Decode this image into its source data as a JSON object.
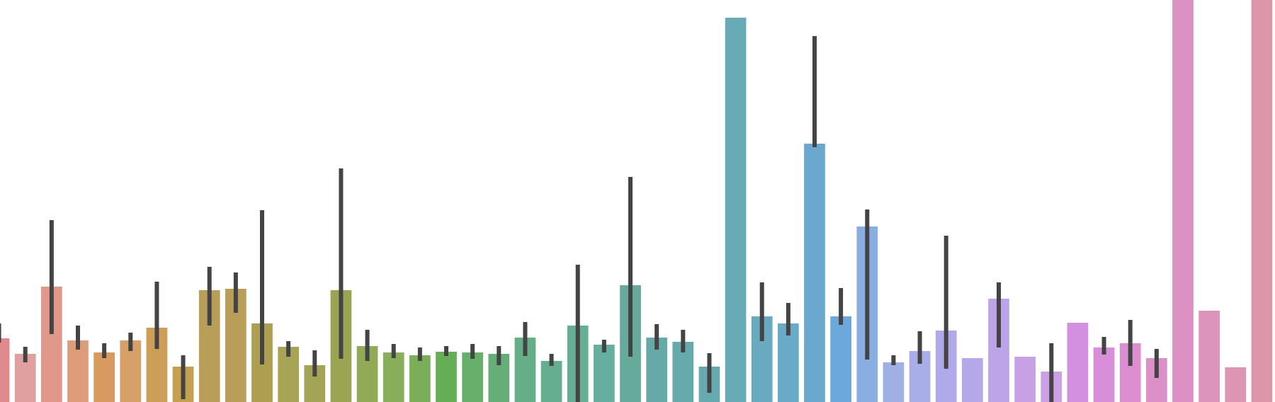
{
  "chart_data": {
    "type": "bar",
    "title": "",
    "xlabel": "",
    "ylabel": "",
    "ylim": [
      0,
      568
    ],
    "grid": false,
    "legend": "none",
    "bars": [
      {
        "v": 90,
        "lo": 84,
        "hi": 111,
        "color": "#e08a8e"
      },
      {
        "v": 68,
        "lo": 56,
        "hi": 78,
        "color": "#e0a09e"
      },
      {
        "v": 163,
        "lo": 96,
        "hi": 257,
        "color": "#e0988a"
      },
      {
        "v": 87,
        "lo": 74,
        "hi": 108,
        "color": "#de9c78"
      },
      {
        "v": 70,
        "lo": 62,
        "hi": 83,
        "color": "#d99a62"
      },
      {
        "v": 87,
        "lo": 72,
        "hi": 98,
        "color": "#d6a068"
      },
      {
        "v": 105,
        "lo": 75,
        "hi": 170,
        "color": "#cc9e58"
      },
      {
        "v": 50,
        "lo": 4,
        "hi": 66,
        "color": "#c4a050"
      },
      {
        "v": 158,
        "lo": 108,
        "hi": 191,
        "color": "#b89e58"
      },
      {
        "v": 160,
        "lo": 126,
        "hi": 183,
        "color": "#b89e58"
      },
      {
        "v": 111,
        "lo": 53,
        "hi": 271,
        "color": "#aca050"
      },
      {
        "v": 78,
        "lo": 64,
        "hi": 86,
        "color": "#a8a456"
      },
      {
        "v": 52,
        "lo": 36,
        "hi": 73,
        "color": "#a4a456"
      },
      {
        "v": 158,
        "lo": 61,
        "hi": 330,
        "color": "#9aa452"
      },
      {
        "v": 79,
        "lo": 58,
        "hi": 102,
        "color": "#90aa58"
      },
      {
        "v": 70,
        "lo": 62,
        "hi": 82,
        "color": "#88ae5c"
      },
      {
        "v": 66,
        "lo": 58,
        "hi": 77,
        "color": "#7aae58"
      },
      {
        "v": 71,
        "lo": 65,
        "hi": 79,
        "color": "#66ae56"
      },
      {
        "v": 70,
        "lo": 61,
        "hi": 82,
        "color": "#66b06c"
      },
      {
        "v": 68,
        "lo": 52,
        "hi": 79,
        "color": "#66ae78"
      },
      {
        "v": 91,
        "lo": 65,
        "hi": 113,
        "color": "#66ae88"
      },
      {
        "v": 58,
        "lo": 51,
        "hi": 68,
        "color": "#66ae90"
      },
      {
        "v": 108,
        "lo": 0,
        "hi": 194,
        "color": "#66ae94"
      },
      {
        "v": 81,
        "lo": 70,
        "hi": 88,
        "color": "#66aea0"
      },
      {
        "v": 165,
        "lo": 64,
        "hi": 318,
        "color": "#66aa9c"
      },
      {
        "v": 91,
        "lo": 74,
        "hi": 110,
        "color": "#66aaa8"
      },
      {
        "v": 85,
        "lo": 70,
        "hi": 102,
        "color": "#66aaac"
      },
      {
        "v": 50,
        "lo": 13,
        "hi": 69,
        "color": "#66aab0"
      },
      {
        "v": 543,
        "lo": 543,
        "hi": 543,
        "color": "#68aab6"
      },
      {
        "v": 121,
        "lo": 86,
        "hi": 169,
        "color": "#6aaac0"
      },
      {
        "v": 111,
        "lo": 94,
        "hi": 140,
        "color": "#68aac8"
      },
      {
        "v": 365,
        "lo": 360,
        "hi": 517,
        "color": "#6aa8d0"
      },
      {
        "v": 121,
        "lo": 109,
        "hi": 161,
        "color": "#6ca8dc"
      },
      {
        "v": 248,
        "lo": 60,
        "hi": 272,
        "color": "#8aaee2"
      },
      {
        "v": 56,
        "lo": 52,
        "hi": 66,
        "color": "#a0b0e4"
      },
      {
        "v": 72,
        "lo": 54,
        "hi": 100,
        "color": "#a8aee8"
      },
      {
        "v": 101,
        "lo": 47,
        "hi": 235,
        "color": "#b0aaea"
      },
      {
        "v": 62,
        "lo": 62,
        "hi": 62,
        "color": "#b4a8e8"
      },
      {
        "v": 146,
        "lo": 77,
        "hi": 169,
        "color": "#bca4e8"
      },
      {
        "v": 64,
        "lo": 64,
        "hi": 64,
        "color": "#c8a0e4"
      },
      {
        "v": 43,
        "lo": 0,
        "hi": 83,
        "color": "#cca0e4"
      },
      {
        "v": 112,
        "lo": 112,
        "hi": 112,
        "color": "#d490e0"
      },
      {
        "v": 77,
        "lo": 67,
        "hi": 92,
        "color": "#d88ed8"
      },
      {
        "v": 83,
        "lo": 51,
        "hi": 116,
        "color": "#dc8ed0"
      },
      {
        "v": 62,
        "lo": 34,
        "hi": 75,
        "color": "#dc90c8"
      },
      {
        "v": 568,
        "lo": 568,
        "hi": 568,
        "color": "#dc90c4"
      },
      {
        "v": 129,
        "lo": 129,
        "hi": 129,
        "color": "#dc94bc"
      },
      {
        "v": 49,
        "lo": 49,
        "hi": 49,
        "color": "#dc96b4"
      },
      {
        "v": 568,
        "lo": 568,
        "hi": 568,
        "color": "#dc96aa"
      }
    ]
  }
}
